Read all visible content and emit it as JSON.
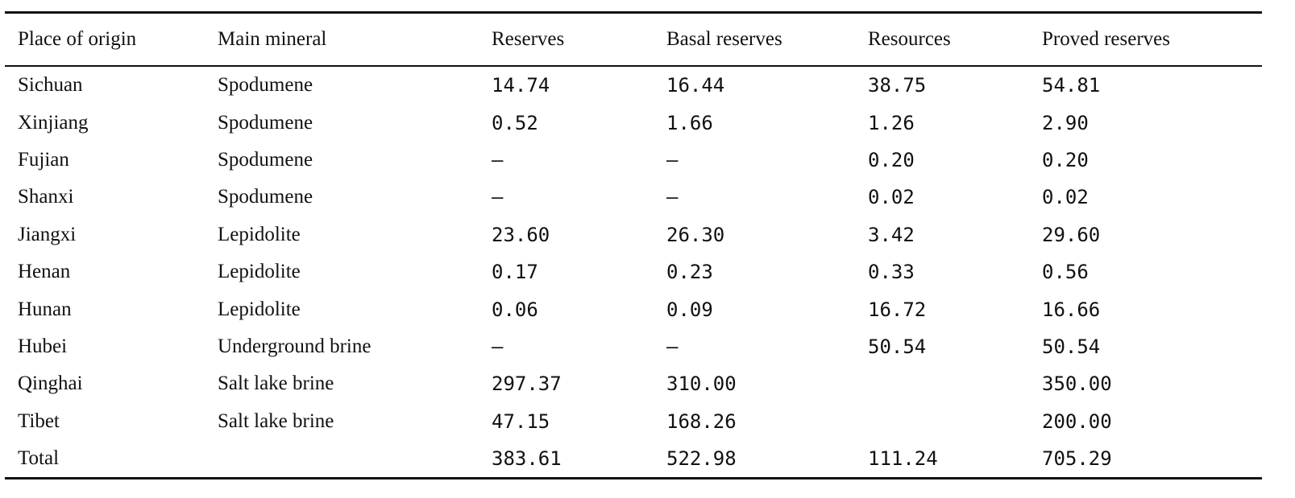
{
  "table": {
    "headers": [
      "Place of origin",
      "Main mineral",
      "Reserves",
      "Basal reserves",
      "Resources",
      "Proved reserves"
    ],
    "rows": [
      [
        "Sichuan",
        "Spodumene",
        "14.74",
        "16.44",
        "38.75",
        "54.81"
      ],
      [
        "Xinjiang",
        "Spodumene",
        "0.52",
        "1.66",
        "1.26",
        "2.90"
      ],
      [
        "Fujian",
        "Spodumene",
        "–",
        "–",
        "0.20",
        "0.20"
      ],
      [
        "Shanxi",
        "Spodumene",
        "–",
        "–",
        "0.02",
        "0.02"
      ],
      [
        "Jiangxi",
        "Lepidolite",
        "23.60",
        "26.30",
        "3.42",
        "29.60"
      ],
      [
        "Henan",
        "Lepidolite",
        "0.17",
        "0.23",
        "0.33",
        "0.56"
      ],
      [
        "Hunan",
        "Lepidolite",
        "0.06",
        "0.09",
        "16.72",
        "16.66"
      ],
      [
        "Hubei",
        "Underground brine",
        "–",
        "–",
        "50.54",
        "50.54"
      ],
      [
        "Qinghai",
        "Salt lake brine",
        "297.37",
        "310.00",
        "",
        "350.00"
      ],
      [
        "Tibet",
        "Salt lake brine",
        "47.15",
        "168.26",
        "",
        "200.00"
      ],
      [
        "Total",
        "",
        "383.61",
        "522.98",
        "111.24",
        "705.29"
      ]
    ]
  }
}
